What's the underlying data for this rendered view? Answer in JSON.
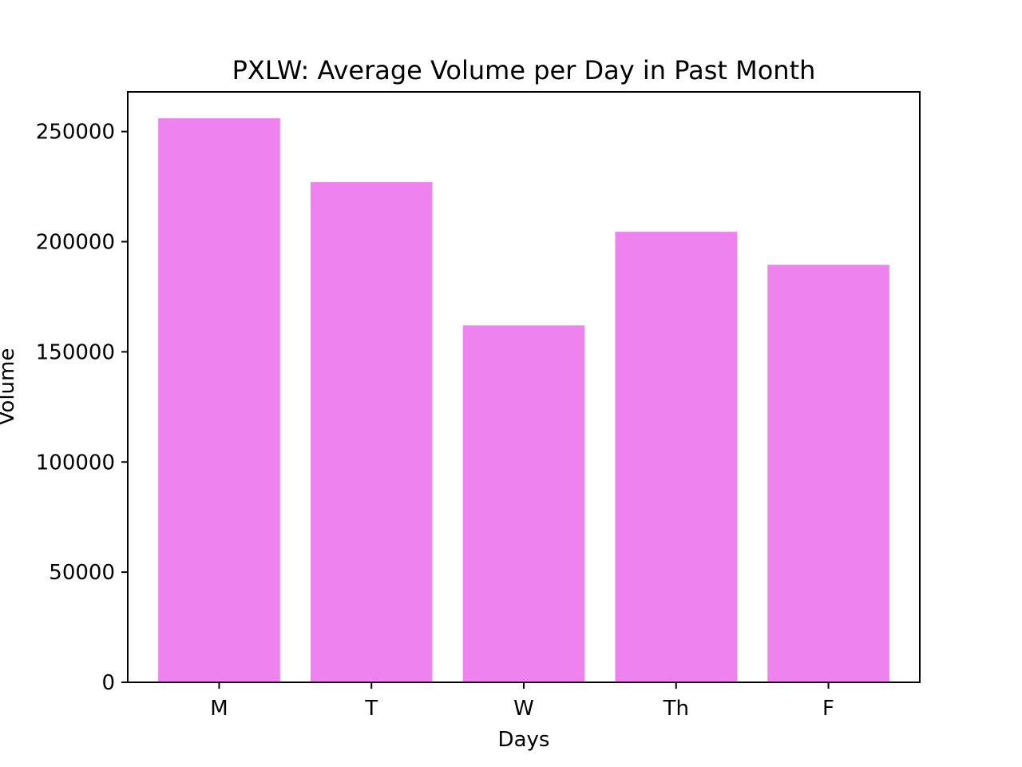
{
  "chart_data": {
    "type": "bar",
    "title": "PXLW: Average Volume per Day in Past Month",
    "xlabel": "Days",
    "ylabel": "Volume",
    "categories": [
      "M",
      "T",
      "W",
      "Th",
      "F"
    ],
    "values": [
      256000,
      227000,
      162000,
      204500,
      189500
    ],
    "ylim": [
      0,
      268000
    ],
    "yticks": [
      0,
      50000,
      100000,
      150000,
      200000,
      250000
    ],
    "ytick_labels": [
      "0",
      "50000",
      "100000",
      "150000",
      "200000",
      "250000"
    ],
    "bar_color": "#ee82ee",
    "grid": false,
    "legend": "none"
  }
}
